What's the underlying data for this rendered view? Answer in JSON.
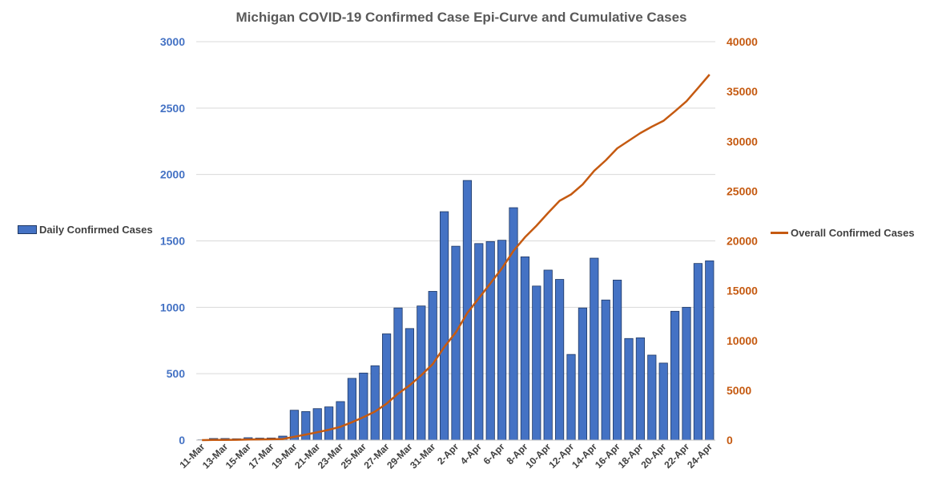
{
  "chart_data": {
    "type": "bar+line",
    "title": "Michigan COVID-19 Confirmed Case Epi-Curve and Cumulative Cases",
    "categories": [
      "11-Mar",
      "12-Mar",
      "13-Mar",
      "14-Mar",
      "15-Mar",
      "16-Mar",
      "17-Mar",
      "18-Mar",
      "19-Mar",
      "20-Mar",
      "21-Mar",
      "22-Mar",
      "23-Mar",
      "24-Mar",
      "25-Mar",
      "26-Mar",
      "27-Mar",
      "28-Mar",
      "29-Mar",
      "30-Mar",
      "31-Mar",
      "1-Apr",
      "2-Apr",
      "3-Apr",
      "4-Apr",
      "5-Apr",
      "6-Apr",
      "7-Apr",
      "8-Apr",
      "9-Apr",
      "10-Apr",
      "11-Apr",
      "12-Apr",
      "13-Apr",
      "14-Apr",
      "15-Apr",
      "16-Apr",
      "17-Apr",
      "18-Apr",
      "19-Apr",
      "20-Apr",
      "21-Apr",
      "22-Apr",
      "23-Apr",
      "24-Apr"
    ],
    "tick_labels": [
      "11-Mar",
      "13-Mar",
      "15-Mar",
      "17-Mar",
      "19-Mar",
      "21-Mar",
      "23-Mar",
      "25-Mar",
      "27-Mar",
      "29-Mar",
      "31-Mar",
      "2-Apr",
      "4-Apr",
      "6-Apr",
      "8-Apr",
      "10-Apr",
      "12-Apr",
      "14-Apr",
      "16-Apr",
      "18-Apr",
      "20-Apr",
      "22-Apr",
      "24-Apr"
    ],
    "series": [
      {
        "name": "Daily Confirmed Cases",
        "axis": "left",
        "color": "#4472C4",
        "values": [
          2,
          12,
          12,
          10,
          18,
          15,
          16,
          30,
          225,
          215,
          237,
          250,
          290,
          465,
          505,
          560,
          800,
          995,
          840,
          1010,
          1120,
          1720,
          1460,
          1955,
          1480,
          1495,
          1505,
          1750,
          1380,
          1160,
          1280,
          1210,
          645,
          995,
          1370,
          1055,
          1205,
          765,
          770,
          640,
          580,
          970,
          1000,
          1330,
          1350
        ]
      },
      {
        "name": "Overall Confirmed Cases",
        "axis": "right",
        "color": "#C55A11",
        "values": [
          2,
          14,
          26,
          36,
          54,
          69,
          85,
          115,
          340,
          555,
          792,
          1042,
          1332,
          1797,
          2302,
          2862,
          3662,
          4657,
          5497,
          6507,
          7627,
          9347,
          10807,
          12762,
          14242,
          15737,
          17242,
          18992,
          20372,
          21532,
          22812,
          24022,
          24667,
          25662,
          27032,
          28087,
          29292,
          30057,
          30827,
          31467,
          32047,
          33017,
          34017,
          35347,
          36697
        ]
      }
    ],
    "y_left": {
      "ticks": [
        "0",
        "500",
        "1000",
        "1500",
        "2000",
        "2500",
        "3000"
      ],
      "range": [
        0,
        3000
      ],
      "color": "#4472C4"
    },
    "y_right": {
      "ticks": [
        "0",
        "5000",
        "10000",
        "15000",
        "20000",
        "25000",
        "30000",
        "35000",
        "40000"
      ],
      "range": [
        0,
        40000
      ],
      "color": "#C55A11"
    },
    "grid": true,
    "legend": {
      "left": "Daily Confirmed Cases",
      "right": "Overall Confirmed Cases"
    }
  }
}
